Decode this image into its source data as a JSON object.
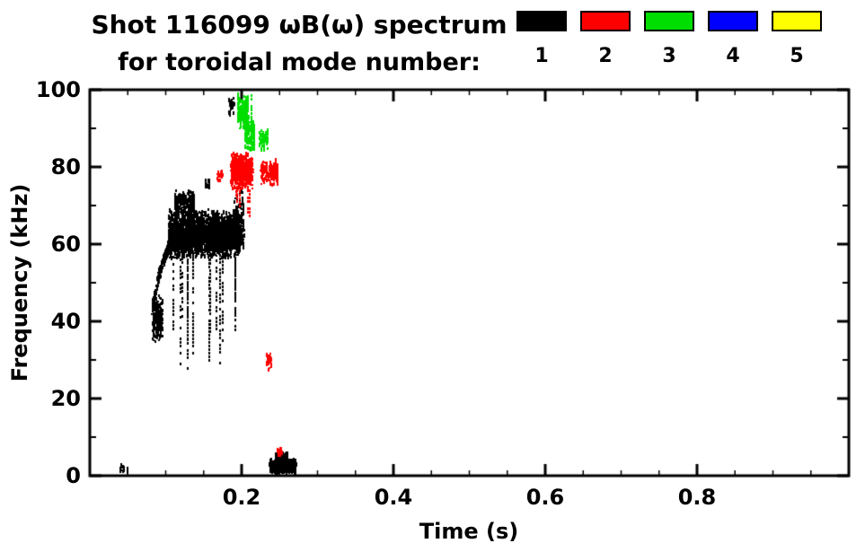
{
  "header": {
    "title_line1": "Shot 116099 ωB(ω) spectrum",
    "title_line2": "for toroidal mode number:"
  },
  "legend": {
    "items": [
      {
        "label": "1",
        "color": "#000000"
      },
      {
        "label": "2",
        "color": "#ff0000"
      },
      {
        "label": "3",
        "color": "#00dd00"
      },
      {
        "label": "4",
        "color": "#0000ff"
      },
      {
        "label": "5",
        "color": "#ffff00"
      }
    ]
  },
  "chart_data": {
    "type": "scatter",
    "title": "Shot 116099 ωB(ω) spectrum for toroidal mode number: 1-5",
    "xlabel": "Time (s)",
    "ylabel": "Frequency (kHz)",
    "xlim": [
      0,
      1.0
    ],
    "ylim": [
      0,
      100
    ],
    "xticks": [
      0.2,
      0.4,
      0.6,
      0.8
    ],
    "xtick_labels": [
      "0.2",
      "0.4",
      "0.6",
      "0.8"
    ],
    "yticks": [
      0,
      20,
      40,
      60,
      80,
      100
    ],
    "ytick_labels": [
      "0",
      "20",
      "40",
      "60",
      "80",
      "100"
    ],
    "x_minor_step": 0.05,
    "y_minor_step": 10,
    "grid": false,
    "background": "#ffffff",
    "axis_color": "#000000",
    "legend_position": "top-right",
    "series": [
      {
        "name": "n=1",
        "color": "#000000",
        "clusters": [
          {
            "shape": "path",
            "points": [
              [
                0.082,
                43
              ],
              [
                0.088,
                49
              ],
              [
                0.094,
                54
              ],
              [
                0.101,
                58
              ],
              [
                0.108,
                61
              ],
              [
                0.115,
                63
              ]
            ],
            "jitter": 1.6,
            "n": 300
          },
          {
            "shape": "blob",
            "t": [
              0.083,
              0.096
            ],
            "f": [
              34,
              47
            ],
            "n": 200
          },
          {
            "shape": "blob",
            "t": [
              0.104,
              0.198
            ],
            "f": [
              56,
              69
            ],
            "n": 2400
          },
          {
            "shape": "blob",
            "t": [
              0.112,
              0.138
            ],
            "f": [
              68,
              74
            ],
            "n": 170
          },
          {
            "shape": "streaks",
            "t": [
              0.108,
              0.196
            ],
            "f_top": [
              56,
              58
            ],
            "f_bottom": [
              26,
              42
            ],
            "count": 14
          },
          {
            "shape": "blob",
            "t": [
              0.19,
              0.203
            ],
            "f": [
              58,
              74
            ],
            "n": 150
          },
          {
            "shape": "blob",
            "t": [
              0.152,
              0.159
            ],
            "f": [
              74,
              77
            ],
            "n": 20
          },
          {
            "shape": "blob",
            "t": [
              0.183,
              0.191
            ],
            "f": [
              93,
              98
            ],
            "n": 30
          },
          {
            "shape": "blob",
            "t": [
              0.237,
              0.272
            ],
            "f": [
              0.5,
              4.5
            ],
            "n": 420
          },
          {
            "shape": "blob",
            "t": [
              0.245,
              0.261
            ],
            "f": [
              3,
              6.5
            ],
            "n": 120
          },
          {
            "shape": "blob",
            "t": [
              0.04,
              0.045
            ],
            "f": [
              0.5,
              3
            ],
            "n": 10
          },
          {
            "shape": "blob",
            "t": [
              0.049,
              0.052
            ],
            "f": [
              0.5,
              2.5
            ],
            "n": 6
          }
        ]
      },
      {
        "name": "n=2",
        "color": "#ff0000",
        "clusters": [
          {
            "shape": "blob",
            "t": [
              0.186,
              0.215
            ],
            "f": [
              74,
              84
            ],
            "n": 480
          },
          {
            "shape": "streaks",
            "t": [
              0.19,
              0.212
            ],
            "f_top": [
              78,
              82
            ],
            "f_bottom": [
              64,
              72
            ],
            "count": 5
          },
          {
            "shape": "blob",
            "t": [
              0.225,
              0.248
            ],
            "f": [
              75,
              82
            ],
            "n": 150
          },
          {
            "shape": "blob",
            "t": [
              0.168,
              0.176
            ],
            "f": [
              76,
              79
            ],
            "n": 22
          },
          {
            "shape": "blob",
            "t": [
              0.233,
              0.239
            ],
            "f": [
              27,
              33
            ],
            "n": 28
          },
          {
            "shape": "blob",
            "t": [
              0.247,
              0.254
            ],
            "f": [
              5,
              8
            ],
            "n": 22
          }
        ]
      },
      {
        "name": "n=3",
        "color": "#00dd00",
        "clusters": [
          {
            "shape": "blob",
            "t": [
              0.195,
              0.209
            ],
            "f": [
              90,
              99
            ],
            "n": 220
          },
          {
            "shape": "blob",
            "t": [
              0.204,
              0.217
            ],
            "f": [
              84,
              92
            ],
            "n": 110
          },
          {
            "shape": "streaks",
            "t": [
              0.199,
              0.214
            ],
            "f_top": [
              96,
              99
            ],
            "f_bottom": [
              85,
              90
            ],
            "count": 4
          },
          {
            "shape": "blob",
            "t": [
              0.223,
              0.235
            ],
            "f": [
              84,
              90
            ],
            "n": 55
          }
        ]
      },
      {
        "name": "n=4",
        "color": "#0000ff",
        "clusters": []
      },
      {
        "name": "n=5",
        "color": "#ffff00",
        "clusters": []
      }
    ]
  }
}
